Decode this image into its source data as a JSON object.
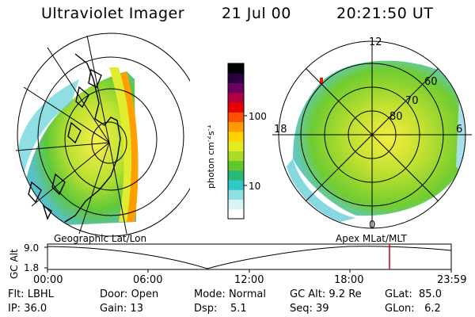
{
  "header": {
    "instrument": "Ultraviolet Imager",
    "date": "21 Jul 00",
    "time": "20:21:50 UT"
  },
  "colorbar": {
    "label": "photon cm-2s-1",
    "unit_parts": [
      "photon cm",
      "-2",
      "s",
      "-1"
    ],
    "ticks": [
      "100",
      "10"
    ],
    "colors": [
      "#ffffff",
      "#d8f4f4",
      "#8fe0e0",
      "#30c8c8",
      "#28b878",
      "#60c828",
      "#a8dc28",
      "#e4ec20",
      "#ffd200",
      "#ff9a00",
      "#ff5000",
      "#e80000",
      "#b00040",
      "#6c0060",
      "#2c0040",
      "#000000"
    ]
  },
  "left_map": {
    "projection_label": "Geographic Lat/Lon"
  },
  "right_map": {
    "projection_label": "Apex MLat/MLT",
    "mlt_labels": [
      "12",
      "18",
      "6",
      "0"
    ],
    "mlat_labels": [
      "60",
      "70",
      "80"
    ]
  },
  "altitude_plot": {
    "axis_label": "GC Alt",
    "y_ticks": [
      "9.0",
      "1.8"
    ],
    "x_ticks": [
      "00:00",
      "06:00",
      "12:00",
      "18:00",
      "23:59"
    ],
    "marker_color": "#d00000"
  },
  "footer": {
    "row1": [
      {
        "label": "Flt:",
        "value": "LBHL"
      },
      {
        "label": "Door:",
        "value": "Open"
      },
      {
        "label": "Mode:",
        "value": "Normal"
      },
      {
        "label": "GC Alt:",
        "value": "9.2 Re"
      },
      {
        "label": "GLat:",
        "value": "85.0"
      }
    ],
    "row2": [
      {
        "label": "IP:",
        "value": "36.0"
      },
      {
        "label": "Gain:",
        "value": "13"
      },
      {
        "label": "Dsp:",
        "value": "5.1"
      },
      {
        "label": "Seq:",
        "value": "39"
      },
      {
        "label": "GLon:",
        "value": "6.2"
      }
    ]
  }
}
